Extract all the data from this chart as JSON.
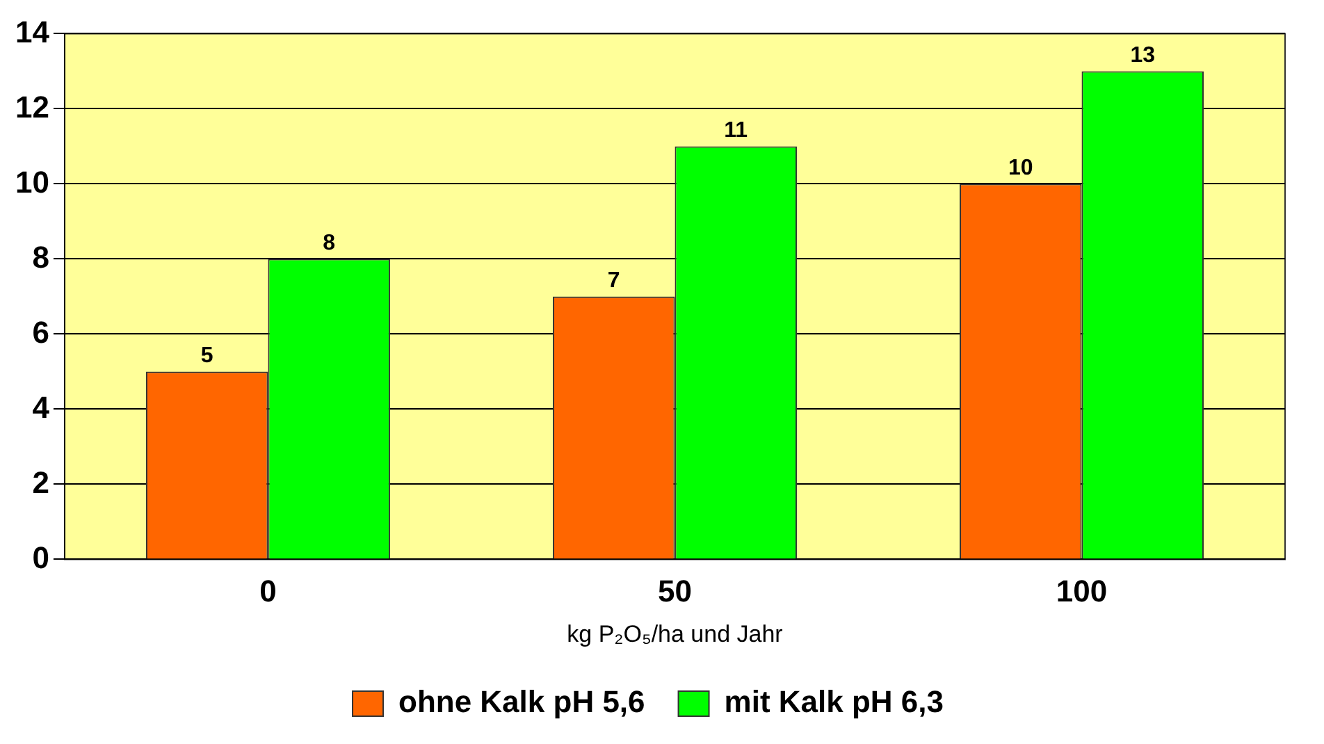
{
  "chart_data": {
    "type": "bar",
    "xlabel": "kg P₂O₅/ha und Jahr",
    "categories": [
      "0",
      "50",
      "100"
    ],
    "series": [
      {
        "name": "ohne Kalk pH 5,6",
        "color": "#ff6600",
        "values": [
          5,
          7,
          10
        ]
      },
      {
        "name": "mit Kalk pH 6,3",
        "color": "#00ff00",
        "values": [
          8,
          11,
          13
        ]
      }
    ],
    "ylim": [
      0,
      14
    ],
    "yticks": [
      0,
      2,
      4,
      6,
      8,
      10,
      12,
      14
    ],
    "grid": "y",
    "legend": "bottom",
    "data_labels": true
  }
}
